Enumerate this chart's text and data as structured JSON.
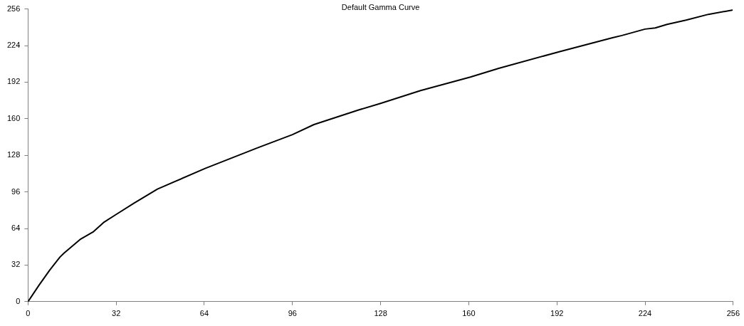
{
  "chart_data": {
    "type": "line",
    "title": "Default Gamma Curve",
    "series": [
      {
        "color": "#000000",
        "x": [
          0,
          4,
          7.9,
          11.6,
          13.1,
          18.9,
          23.6,
          27.4,
          32,
          38.5,
          47,
          64.3,
          83.2,
          96,
          103.8,
          120.2,
          128,
          142.5,
          160.6,
          170.9,
          193.3,
          212.2,
          215.6,
          224,
          227.7,
          232,
          238.9,
          247,
          255.6
        ],
        "values": [
          0,
          14.4,
          27.7,
          39,
          42.5,
          54.4,
          60.9,
          69.2,
          76.3,
          86.2,
          98.5,
          116.5,
          134.4,
          146.1,
          154.9,
          167.8,
          173.4,
          184.6,
          196.5,
          204.1,
          218.9,
          230.8,
          232.8,
          238.4,
          239.4,
          242.5,
          246.2,
          251.3,
          255
        ]
      }
    ],
    "xlim": [
      0,
      256
    ],
    "xticks": [
      0,
      32,
      64,
      96,
      128,
      160,
      192,
      224,
      256
    ],
    "ylim": [
      0,
      256
    ],
    "yticks": [
      0,
      32,
      64,
      96,
      128,
      160,
      192,
      224,
      256
    ],
    "grid": false,
    "legend": false,
    "marker": "none",
    "line_style": "solid"
  }
}
